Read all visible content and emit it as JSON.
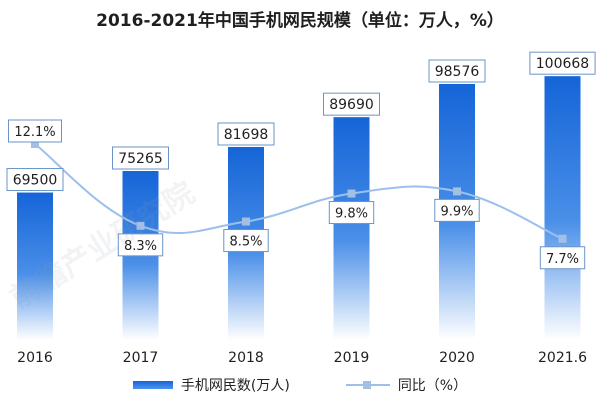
{
  "chart_data": {
    "type": "bar",
    "title": "2016-2021年中国手机网民规模（单位：万人，%）",
    "categories": [
      "2016",
      "2017",
      "2018",
      "2019",
      "2020",
      "2021.6"
    ],
    "series": [
      {
        "name": "手机网民数(万人)",
        "type": "bar",
        "axis": "left",
        "values": [
          69500,
          75265,
          81698,
          89690,
          98576,
          100668
        ],
        "labels": [
          "69500",
          "75265",
          "81698",
          "89690",
          "98576",
          "100668"
        ]
      },
      {
        "name": "同比（%）",
        "type": "line",
        "axis": "right",
        "values": [
          12.1,
          8.3,
          8.5,
          9.8,
          9.9,
          7.7
        ],
        "labels": [
          "12.1%",
          "8.3%",
          "8.5%",
          "9.8%",
          "9.9%",
          "7.7%"
        ]
      }
    ],
    "bar_axis_range": [
      30000,
      105000
    ],
    "line_axis_range": [
      3,
      16
    ],
    "grid": false,
    "legend": "bottom-center",
    "colors": {
      "bar_top": "#1565d8",
      "bar_bottom": "#ffffff",
      "line": "#9cc0ee",
      "marker": "#a3bfe4",
      "label_border": "#6a94c8"
    }
  },
  "legend": {
    "bar_label": "手机网民数(万人)",
    "line_label": "同比（%）"
  },
  "watermark": {
    "text": "前瞻产业研究院"
  }
}
